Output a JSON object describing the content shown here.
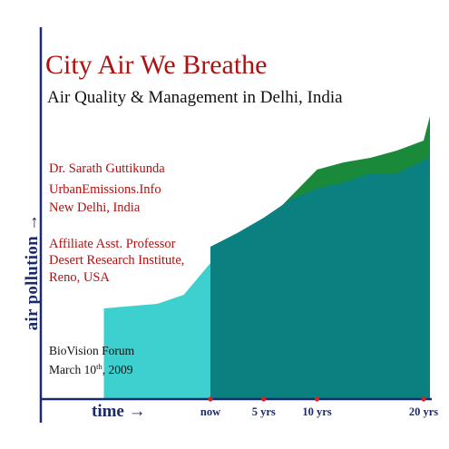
{
  "slide": {
    "title": "City Air We Breathe",
    "subtitle": "Air Quality & Management in Delhi, India",
    "author": {
      "name": "Dr. Sarath Guttikunda",
      "org": "UrbanEmissions.Info",
      "location": "New Delhi, India"
    },
    "affiliation": {
      "role": "Affiliate Asst. Professor",
      "institute": "Desert Research Institute,",
      "location": "Reno, USA"
    },
    "event": {
      "name": "BioVision Forum",
      "date_prefix": "March 10",
      "date_suffix": "th",
      "date_year": ", 2009"
    }
  },
  "chart_data": {
    "type": "area",
    "title": "",
    "xlabel": "time →",
    "ylabel": "air pollution →",
    "tick_labels": [
      "now",
      "5 yrs",
      "10 yrs",
      "20 yrs"
    ],
    "tick_years": [
      0,
      5,
      10,
      20
    ],
    "grid": false,
    "legend": "none",
    "series": [
      {
        "role": "past",
        "x": [
          -10,
          -5,
          -2.5,
          0
        ],
        "y": [
          100,
          105,
          115,
          150
        ]
      },
      {
        "role": "future",
        "x": [
          0,
          2.5,
          5,
          7.5,
          10,
          12.5,
          15,
          17.5,
          20,
          21
        ],
        "y": [
          168,
          183,
          200,
          220,
          232,
          239,
          249,
          249,
          263,
          268
        ]
      },
      {
        "role": "projected",
        "x": [
          0,
          5,
          10,
          12.5,
          15,
          17.5,
          20,
          21
        ],
        "y": [
          168,
          193,
          253,
          261,
          266,
          274,
          285,
          312
        ]
      }
    ],
    "colors": {
      "past": "#3ecfcf",
      "future": "#0a8080",
      "projected": "#1a8a3a",
      "axis": "#1b2a6b",
      "tick_marker": "#e02020",
      "title": "#b01010",
      "red_text": "#b01010",
      "axis_text": "#1b2a6b"
    }
  }
}
